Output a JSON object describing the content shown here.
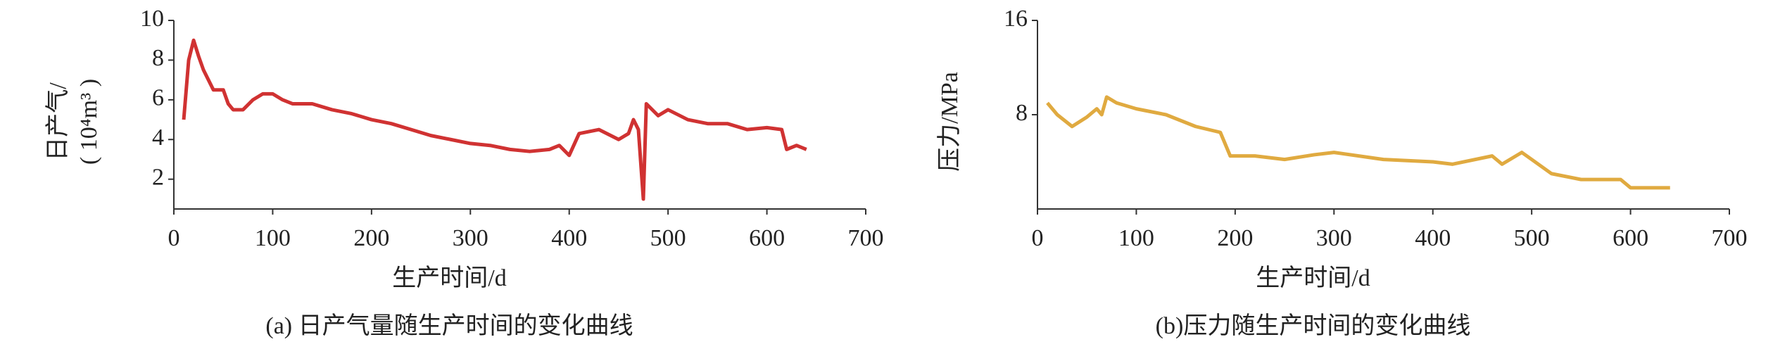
{
  "chart_data": [
    {
      "type": "line",
      "title": "(a) 日产气量随生产时间的变化曲线",
      "xlabel": "生产时间/d",
      "ylabel": [
        "日产气/",
        "( 10⁴m³ )"
      ],
      "xlim": [
        0,
        700
      ],
      "xticks": [
        0,
        100,
        200,
        300,
        400,
        500,
        600,
        700
      ],
      "ylim": [
        0.5,
        10
      ],
      "yticks": [
        2,
        4,
        6,
        8,
        10
      ],
      "series": [
        {
          "color": "#d03232",
          "x": [
            10,
            15,
            20,
            25,
            30,
            40,
            50,
            55,
            60,
            70,
            80,
            90,
            100,
            110,
            120,
            140,
            160,
            180,
            200,
            220,
            240,
            260,
            280,
            300,
            320,
            340,
            360,
            380,
            390,
            400,
            410,
            430,
            450,
            460,
            465,
            470,
            475,
            478,
            490,
            500,
            520,
            540,
            560,
            580,
            600,
            615,
            620,
            630,
            640
          ],
          "values": [
            5,
            8,
            9,
            8.2,
            7.5,
            6.5,
            6.5,
            5.8,
            5.5,
            5.5,
            6,
            6.3,
            6.3,
            6,
            5.8,
            5.8,
            5.5,
            5.3,
            5,
            4.8,
            4.5,
            4.2,
            4,
            3.8,
            3.7,
            3.5,
            3.4,
            3.5,
            3.7,
            3.2,
            4.3,
            4.5,
            4,
            4.3,
            5,
            4.5,
            1,
            5.8,
            5.2,
            5.5,
            5,
            4.8,
            4.8,
            4.5,
            4.6,
            4.5,
            3.5,
            3.7,
            3.5
          ]
        }
      ]
    },
    {
      "type": "line",
      "title": "(b)压力随生产时间的变化曲线",
      "xlabel": "生产时间/d",
      "ylabel": [
        "压力/MPa"
      ],
      "xlim": [
        0,
        700
      ],
      "xticks": [
        0,
        100,
        200,
        300,
        400,
        500,
        600,
        700
      ],
      "ylim": [
        0,
        16
      ],
      "yticks": [
        8,
        16
      ],
      "series": [
        {
          "color": "#e0aa40",
          "x": [
            10,
            20,
            35,
            50,
            60,
            65,
            70,
            80,
            100,
            130,
            160,
            185,
            195,
            220,
            250,
            280,
            300,
            350,
            400,
            420,
            460,
            470,
            490,
            500,
            520,
            550,
            590,
            600,
            610,
            640
          ],
          "values": [
            9,
            8,
            7,
            7.8,
            8.5,
            8,
            9.5,
            9,
            8.5,
            8,
            7,
            6.5,
            4.5,
            4.5,
            4.2,
            4.6,
            4.8,
            4.2,
            4,
            3.8,
            4.5,
            3.8,
            4.8,
            4.2,
            3,
            2.5,
            2.5,
            1.8,
            1.8,
            1.8
          ]
        }
      ]
    }
  ]
}
